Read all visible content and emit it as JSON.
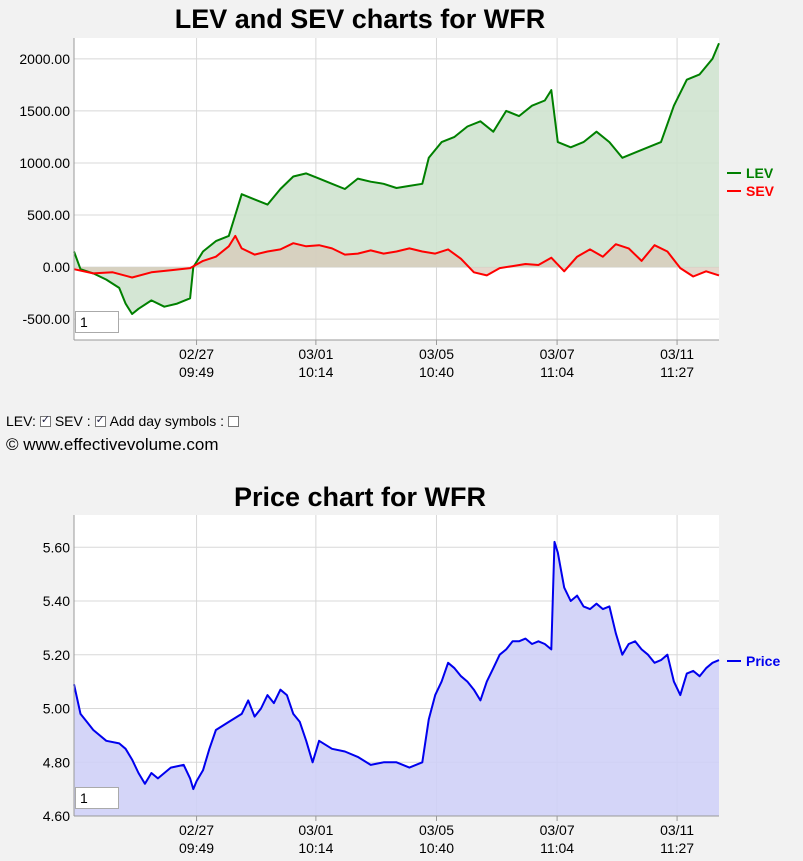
{
  "header_top": "",
  "ev_chart": {
    "title": "LEV and SEV charts for WFR",
    "zoom_value": "1"
  },
  "controls": {
    "lev_label": "LEV:",
    "lev_checked": true,
    "sev_label": "SEV :",
    "sev_checked": true,
    "day_symbols_label": "Add day symbols :",
    "day_symbols_checked": false
  },
  "copyright": "© www.effectivevolume.com",
  "price_chart": {
    "title": "Price chart for WFR",
    "zoom_value": "1"
  },
  "colors": {
    "lev": "#008000",
    "sev": "#ff0000",
    "price": "#0000ee",
    "lev_fill": "#cfe3cf",
    "sev_fill": "#d9c8b8",
    "price_fill": "#cfd0f7"
  },
  "chart_data": [
    {
      "type": "area",
      "title": "LEV and SEV charts for WFR",
      "x_ticks": [
        {
          "date": "02/27",
          "time": "09:49",
          "at": 0.19
        },
        {
          "date": "03/01",
          "time": "10:14",
          "at": 0.375
        },
        {
          "date": "03/05",
          "time": "10:40",
          "at": 0.562
        },
        {
          "date": "03/07",
          "time": "11:04",
          "at": 0.749
        },
        {
          "date": "03/11",
          "time": "11:27",
          "at": 0.935
        }
      ],
      "y_ticks": [
        "2000.00",
        "1500.00",
        "1000.00",
        "500.00",
        "0.00",
        "-500.00"
      ],
      "ylim": [
        -700,
        2200
      ],
      "grid": true,
      "legend_position": "right",
      "series": [
        {
          "name": "LEV",
          "points": [
            [
              0,
              150
            ],
            [
              0.01,
              -20
            ],
            [
              0.03,
              -60
            ],
            [
              0.05,
              -120
            ],
            [
              0.07,
              -200
            ],
            [
              0.08,
              -350
            ],
            [
              0.09,
              -450
            ],
            [
              0.1,
              -400
            ],
            [
              0.12,
              -320
            ],
            [
              0.14,
              -380
            ],
            [
              0.16,
              -350
            ],
            [
              0.18,
              -300
            ],
            [
              0.185,
              0
            ],
            [
              0.2,
              150
            ],
            [
              0.22,
              250
            ],
            [
              0.24,
              300
            ],
            [
              0.25,
              500
            ],
            [
              0.26,
              700
            ],
            [
              0.28,
              650
            ],
            [
              0.3,
              600
            ],
            [
              0.32,
              750
            ],
            [
              0.34,
              870
            ],
            [
              0.36,
              900
            ],
            [
              0.38,
              850
            ],
            [
              0.4,
              800
            ],
            [
              0.42,
              750
            ],
            [
              0.44,
              850
            ],
            [
              0.46,
              820
            ],
            [
              0.48,
              800
            ],
            [
              0.5,
              760
            ],
            [
              0.52,
              780
            ],
            [
              0.54,
              800
            ],
            [
              0.55,
              1050
            ],
            [
              0.57,
              1200
            ],
            [
              0.59,
              1250
            ],
            [
              0.61,
              1350
            ],
            [
              0.63,
              1400
            ],
            [
              0.65,
              1300
            ],
            [
              0.67,
              1500
            ],
            [
              0.69,
              1450
            ],
            [
              0.71,
              1550
            ],
            [
              0.73,
              1600
            ],
            [
              0.74,
              1700
            ],
            [
              0.75,
              1200
            ],
            [
              0.77,
              1150
            ],
            [
              0.79,
              1200
            ],
            [
              0.81,
              1300
            ],
            [
              0.83,
              1200
            ],
            [
              0.85,
              1050
            ],
            [
              0.87,
              1100
            ],
            [
              0.89,
              1150
            ],
            [
              0.91,
              1200
            ],
            [
              0.93,
              1550
            ],
            [
              0.95,
              1800
            ],
            [
              0.97,
              1850
            ],
            [
              0.99,
              2000
            ],
            [
              1.0,
              2150
            ]
          ]
        },
        {
          "name": "SEV",
          "points": [
            [
              0,
              -20
            ],
            [
              0.03,
              -60
            ],
            [
              0.06,
              -50
            ],
            [
              0.09,
              -100
            ],
            [
              0.12,
              -50
            ],
            [
              0.15,
              -30
            ],
            [
              0.18,
              -10
            ],
            [
              0.2,
              60
            ],
            [
              0.22,
              100
            ],
            [
              0.24,
              200
            ],
            [
              0.25,
              300
            ],
            [
              0.26,
              180
            ],
            [
              0.28,
              120
            ],
            [
              0.3,
              150
            ],
            [
              0.32,
              170
            ],
            [
              0.34,
              230
            ],
            [
              0.36,
              200
            ],
            [
              0.38,
              210
            ],
            [
              0.4,
              180
            ],
            [
              0.42,
              120
            ],
            [
              0.44,
              130
            ],
            [
              0.46,
              160
            ],
            [
              0.48,
              130
            ],
            [
              0.5,
              150
            ],
            [
              0.52,
              180
            ],
            [
              0.54,
              150
            ],
            [
              0.56,
              130
            ],
            [
              0.58,
              170
            ],
            [
              0.6,
              80
            ],
            [
              0.62,
              -50
            ],
            [
              0.64,
              -80
            ],
            [
              0.66,
              -10
            ],
            [
              0.68,
              10
            ],
            [
              0.7,
              30
            ],
            [
              0.72,
              20
            ],
            [
              0.74,
              90
            ],
            [
              0.76,
              -40
            ],
            [
              0.78,
              100
            ],
            [
              0.8,
              170
            ],
            [
              0.82,
              100
            ],
            [
              0.84,
              220
            ],
            [
              0.86,
              180
            ],
            [
              0.88,
              60
            ],
            [
              0.9,
              210
            ],
            [
              0.92,
              150
            ],
            [
              0.94,
              -10
            ],
            [
              0.96,
              -90
            ],
            [
              0.98,
              -40
            ],
            [
              1.0,
              -80
            ]
          ]
        }
      ]
    },
    {
      "type": "area",
      "title": "Price chart for WFR",
      "x_ticks": [
        {
          "date": "02/27",
          "time": "09:49",
          "at": 0.19
        },
        {
          "date": "03/01",
          "time": "10:14",
          "at": 0.375
        },
        {
          "date": "03/05",
          "time": "10:40",
          "at": 0.562
        },
        {
          "date": "03/07",
          "time": "11:04",
          "at": 0.749
        },
        {
          "date": "03/11",
          "time": "11:27",
          "at": 0.935
        }
      ],
      "y_ticks": [
        "5.60",
        "5.40",
        "5.20",
        "5.00",
        "4.80",
        "4.60"
      ],
      "ylim": [
        4.6,
        5.72
      ],
      "grid": true,
      "legend_position": "right",
      "series": [
        {
          "name": "Price",
          "points": [
            [
              0,
              5.09
            ],
            [
              0.01,
              4.98
            ],
            [
              0.02,
              4.95
            ],
            [
              0.03,
              4.92
            ],
            [
              0.05,
              4.88
            ],
            [
              0.07,
              4.87
            ],
            [
              0.08,
              4.85
            ],
            [
              0.09,
              4.81
            ],
            [
              0.1,
              4.76
            ],
            [
              0.11,
              4.72
            ],
            [
              0.12,
              4.76
            ],
            [
              0.13,
              4.74
            ],
            [
              0.15,
              4.78
            ],
            [
              0.17,
              4.79
            ],
            [
              0.18,
              4.74
            ],
            [
              0.185,
              4.7
            ],
            [
              0.19,
              4.73
            ],
            [
              0.2,
              4.77
            ],
            [
              0.21,
              4.85
            ],
            [
              0.22,
              4.92
            ],
            [
              0.24,
              4.95
            ],
            [
              0.26,
              4.98
            ],
            [
              0.27,
              5.03
            ],
            [
              0.28,
              4.97
            ],
            [
              0.29,
              5.0
            ],
            [
              0.3,
              5.05
            ],
            [
              0.31,
              5.02
            ],
            [
              0.32,
              5.07
            ],
            [
              0.33,
              5.05
            ],
            [
              0.34,
              4.98
            ],
            [
              0.35,
              4.95
            ],
            [
              0.36,
              4.88
            ],
            [
              0.37,
              4.8
            ],
            [
              0.38,
              4.88
            ],
            [
              0.4,
              4.85
            ],
            [
              0.42,
              4.84
            ],
            [
              0.44,
              4.82
            ],
            [
              0.46,
              4.79
            ],
            [
              0.48,
              4.8
            ],
            [
              0.5,
              4.8
            ],
            [
              0.52,
              4.78
            ],
            [
              0.54,
              4.8
            ],
            [
              0.55,
              4.96
            ],
            [
              0.56,
              5.05
            ],
            [
              0.57,
              5.1
            ],
            [
              0.58,
              5.17
            ],
            [
              0.59,
              5.15
            ],
            [
              0.6,
              5.12
            ],
            [
              0.61,
              5.1
            ],
            [
              0.62,
              5.07
            ],
            [
              0.63,
              5.03
            ],
            [
              0.64,
              5.1
            ],
            [
              0.65,
              5.15
            ],
            [
              0.66,
              5.2
            ],
            [
              0.67,
              5.22
            ],
            [
              0.68,
              5.25
            ],
            [
              0.69,
              5.25
            ],
            [
              0.7,
              5.26
            ],
            [
              0.71,
              5.24
            ],
            [
              0.72,
              5.25
            ],
            [
              0.73,
              5.24
            ],
            [
              0.74,
              5.22
            ],
            [
              0.745,
              5.62
            ],
            [
              0.75,
              5.58
            ],
            [
              0.76,
              5.45
            ],
            [
              0.77,
              5.4
            ],
            [
              0.78,
              5.42
            ],
            [
              0.79,
              5.38
            ],
            [
              0.8,
              5.37
            ],
            [
              0.81,
              5.39
            ],
            [
              0.82,
              5.37
            ],
            [
              0.83,
              5.38
            ],
            [
              0.84,
              5.28
            ],
            [
              0.85,
              5.2
            ],
            [
              0.86,
              5.24
            ],
            [
              0.87,
              5.25
            ],
            [
              0.88,
              5.22
            ],
            [
              0.89,
              5.2
            ],
            [
              0.9,
              5.17
            ],
            [
              0.91,
              5.18
            ],
            [
              0.92,
              5.2
            ],
            [
              0.93,
              5.1
            ],
            [
              0.94,
              5.05
            ],
            [
              0.95,
              5.13
            ],
            [
              0.96,
              5.14
            ],
            [
              0.97,
              5.12
            ],
            [
              0.98,
              5.15
            ],
            [
              0.99,
              5.17
            ],
            [
              1.0,
              5.18
            ]
          ]
        }
      ]
    }
  ]
}
